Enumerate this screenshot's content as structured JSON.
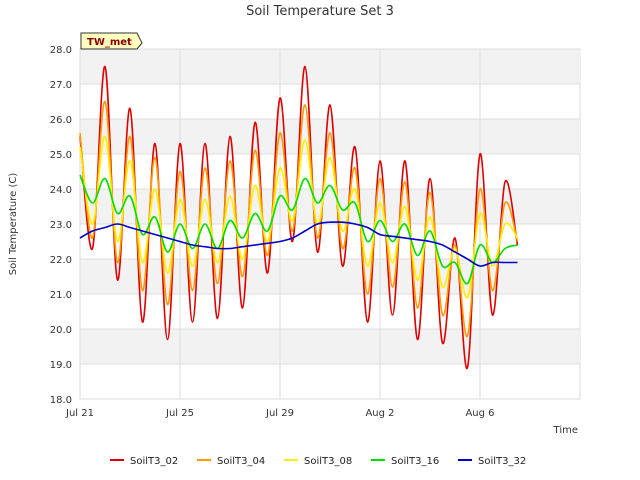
{
  "chart_data": {
    "type": "line",
    "title": "Soil Temperature Set 3",
    "xlabel": "Time",
    "ylabel": "Soil Temperature (C)",
    "badge": "TW_met",
    "xlim": [
      "2023-07-21",
      "2023-08-10"
    ],
    "ylim": [
      18.0,
      28.0
    ],
    "y_ticks": [
      "18.0",
      "19.0",
      "20.0",
      "21.0",
      "22.0",
      "23.0",
      "24.0",
      "25.0",
      "26.0",
      "27.0",
      "28.0"
    ],
    "x_ticks": [
      {
        "date": "2023-07-21",
        "label": "Jul 21"
      },
      {
        "date": "2023-07-25",
        "label": "Jul 25"
      },
      {
        "date": "2023-07-29",
        "label": "Jul 29"
      },
      {
        "date": "2023-08-02",
        "label": "Aug 2"
      },
      {
        "date": "2023-08-06",
        "label": "Aug 6"
      }
    ],
    "grid": true,
    "legend_position": "bottom",
    "series": [
      {
        "name": "SoilT3_02",
        "color": "#dd0000",
        "x": [
          "2023-07-21T00:00",
          "2023-07-21T12:00",
          "2023-07-22T00:00",
          "2023-07-22T12:00",
          "2023-07-23T00:00",
          "2023-07-23T12:00",
          "2023-07-24T00:00",
          "2023-07-24T12:00",
          "2023-07-25T00:00",
          "2023-07-25T12:00",
          "2023-07-26T00:00",
          "2023-07-26T12:00",
          "2023-07-27T00:00",
          "2023-07-27T12:00",
          "2023-07-28T00:00",
          "2023-07-28T12:00",
          "2023-07-29T00:00",
          "2023-07-29T12:00",
          "2023-07-30T00:00",
          "2023-07-30T12:00",
          "2023-07-31T00:00",
          "2023-07-31T12:00",
          "2023-08-01T00:00",
          "2023-08-01T12:00",
          "2023-08-02T00:00",
          "2023-08-02T12:00",
          "2023-08-03T00:00",
          "2023-08-03T12:00",
          "2023-08-04T00:00",
          "2023-08-04T12:00",
          "2023-08-05T00:00",
          "2023-08-05T12:00",
          "2023-08-06T00:00",
          "2023-08-06T12:00",
          "2023-08-07T00:00",
          "2023-08-07T12:00"
        ],
        "values": [
          25.5,
          22.3,
          27.5,
          21.4,
          26.3,
          20.2,
          25.3,
          19.7,
          25.3,
          20.2,
          25.3,
          20.3,
          25.5,
          20.6,
          25.9,
          21.6,
          26.6,
          22.5,
          27.5,
          22.2,
          26.4,
          21.8,
          25.2,
          20.2,
          24.8,
          20.4,
          24.8,
          19.7,
          24.3,
          19.6,
          22.6,
          18.9,
          25.0,
          20.4,
          24.2,
          22.4
        ]
      },
      {
        "name": "SoilT3_04",
        "color": "#ff9900",
        "x": [
          "2023-07-21T00:00",
          "2023-07-21T12:00",
          "2023-07-22T00:00",
          "2023-07-22T12:00",
          "2023-07-23T00:00",
          "2023-07-23T12:00",
          "2023-07-24T00:00",
          "2023-07-24T12:00",
          "2023-07-25T00:00",
          "2023-07-25T12:00",
          "2023-07-26T00:00",
          "2023-07-26T12:00",
          "2023-07-27T00:00",
          "2023-07-27T12:00",
          "2023-07-28T00:00",
          "2023-07-28T12:00",
          "2023-07-29T00:00",
          "2023-07-29T12:00",
          "2023-07-30T00:00",
          "2023-07-30T12:00",
          "2023-07-31T00:00",
          "2023-07-31T12:00",
          "2023-08-01T00:00",
          "2023-08-01T12:00",
          "2023-08-02T00:00",
          "2023-08-02T12:00",
          "2023-08-03T00:00",
          "2023-08-03T12:00",
          "2023-08-04T00:00",
          "2023-08-04T12:00",
          "2023-08-05T00:00",
          "2023-08-05T12:00",
          "2023-08-06T00:00",
          "2023-08-06T12:00",
          "2023-08-07T00:00",
          "2023-08-07T12:00"
        ],
        "values": [
          25.6,
          22.6,
          26.5,
          21.9,
          25.5,
          21.1,
          24.9,
          20.7,
          24.5,
          21.1,
          24.6,
          21.3,
          24.8,
          21.5,
          25.1,
          22.1,
          25.6,
          22.8,
          26.4,
          22.6,
          25.6,
          22.3,
          24.6,
          21.0,
          24.3,
          21.2,
          24.2,
          20.6,
          23.9,
          20.4,
          22.4,
          19.8,
          24.0,
          21.1,
          23.6,
          22.5
        ]
      },
      {
        "name": "SoilT3_08",
        "color": "#ffee00",
        "x": [
          "2023-07-21T00:00",
          "2023-07-21T12:00",
          "2023-07-22T00:00",
          "2023-07-22T12:00",
          "2023-07-23T00:00",
          "2023-07-23T12:00",
          "2023-07-24T00:00",
          "2023-07-24T12:00",
          "2023-07-25T00:00",
          "2023-07-25T12:00",
          "2023-07-26T00:00",
          "2023-07-26T12:00",
          "2023-07-27T00:00",
          "2023-07-27T12:00",
          "2023-07-28T00:00",
          "2023-07-28T12:00",
          "2023-07-29T00:00",
          "2023-07-29T12:00",
          "2023-07-30T00:00",
          "2023-07-30T12:00",
          "2023-07-31T00:00",
          "2023-07-31T12:00",
          "2023-08-01T00:00",
          "2023-08-01T12:00",
          "2023-08-02T00:00",
          "2023-08-02T12:00",
          "2023-08-03T00:00",
          "2023-08-03T12:00",
          "2023-08-04T00:00",
          "2023-08-04T12:00",
          "2023-08-05T00:00",
          "2023-08-05T12:00",
          "2023-08-06T00:00",
          "2023-08-06T12:00",
          "2023-08-07T00:00",
          "2023-08-07T12:00"
        ],
        "values": [
          25.2,
          23.0,
          25.5,
          22.5,
          24.8,
          21.9,
          24.0,
          21.6,
          23.7,
          21.8,
          23.7,
          21.9,
          23.8,
          22.0,
          24.1,
          22.5,
          24.6,
          23.1,
          25.4,
          23.0,
          24.9,
          22.8,
          24.0,
          21.8,
          23.6,
          21.9,
          23.5,
          21.4,
          23.2,
          21.2,
          22.3,
          20.9,
          23.3,
          21.8,
          23.0,
          22.6
        ]
      },
      {
        "name": "SoilT3_16",
        "color": "#00dd00",
        "x": [
          "2023-07-21T00:00",
          "2023-07-21T12:00",
          "2023-07-22T00:00",
          "2023-07-22T12:00",
          "2023-07-23T00:00",
          "2023-07-23T12:00",
          "2023-07-24T00:00",
          "2023-07-24T12:00",
          "2023-07-25T00:00",
          "2023-07-25T12:00",
          "2023-07-26T00:00",
          "2023-07-26T12:00",
          "2023-07-27T00:00",
          "2023-07-27T12:00",
          "2023-07-28T00:00",
          "2023-07-28T12:00",
          "2023-07-29T00:00",
          "2023-07-29T12:00",
          "2023-07-30T00:00",
          "2023-07-30T12:00",
          "2023-07-31T00:00",
          "2023-07-31T12:00",
          "2023-08-01T00:00",
          "2023-08-01T12:00",
          "2023-08-02T00:00",
          "2023-08-02T12:00",
          "2023-08-03T00:00",
          "2023-08-03T12:00",
          "2023-08-04T00:00",
          "2023-08-04T12:00",
          "2023-08-05T00:00",
          "2023-08-05T12:00",
          "2023-08-06T00:00",
          "2023-08-06T12:00",
          "2023-08-07T00:00",
          "2023-08-07T12:00"
        ],
        "values": [
          24.4,
          23.6,
          24.3,
          23.3,
          23.8,
          22.7,
          23.2,
          22.2,
          23.0,
          22.3,
          23.0,
          22.3,
          23.1,
          22.6,
          23.3,
          22.8,
          23.8,
          23.4,
          24.3,
          23.6,
          24.1,
          23.4,
          23.6,
          22.5,
          23.1,
          22.5,
          23.0,
          22.1,
          22.8,
          21.8,
          21.9,
          21.3,
          22.4,
          21.9,
          22.3,
          22.4
        ]
      },
      {
        "name": "SoilT3_32",
        "color": "#0000cc",
        "x": [
          "2023-07-21T00:00",
          "2023-07-21T12:00",
          "2023-07-22T00:00",
          "2023-07-22T12:00",
          "2023-07-23T00:00",
          "2023-07-23T12:00",
          "2023-07-24T00:00",
          "2023-07-24T12:00",
          "2023-07-25T00:00",
          "2023-07-25T12:00",
          "2023-07-26T00:00",
          "2023-07-26T12:00",
          "2023-07-27T00:00",
          "2023-07-27T12:00",
          "2023-07-28T00:00",
          "2023-07-28T12:00",
          "2023-07-29T00:00",
          "2023-07-29T12:00",
          "2023-07-30T00:00",
          "2023-07-30T12:00",
          "2023-07-31T00:00",
          "2023-07-31T12:00",
          "2023-08-01T00:00",
          "2023-08-01T12:00",
          "2023-08-02T00:00",
          "2023-08-02T12:00",
          "2023-08-03T00:00",
          "2023-08-03T12:00",
          "2023-08-04T00:00",
          "2023-08-04T12:00",
          "2023-08-05T00:00",
          "2023-08-05T12:00",
          "2023-08-06T00:00",
          "2023-08-06T12:00",
          "2023-08-07T00:00",
          "2023-08-07T12:00"
        ],
        "values": [
          22.6,
          22.8,
          22.9,
          23.0,
          22.9,
          22.8,
          22.7,
          22.6,
          22.5,
          22.4,
          22.35,
          22.3,
          22.3,
          22.35,
          22.4,
          22.45,
          22.5,
          22.6,
          22.8,
          23.0,
          23.05,
          23.05,
          23.0,
          22.9,
          22.7,
          22.65,
          22.6,
          22.55,
          22.5,
          22.4,
          22.2,
          22.0,
          21.8,
          21.9,
          21.9,
          21.9
        ]
      }
    ]
  }
}
